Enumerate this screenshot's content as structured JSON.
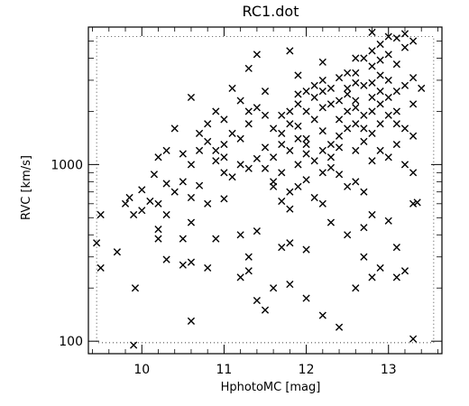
{
  "chart_data": {
    "type": "scatter",
    "title": "RC1.dot",
    "xlabel": "HphotoMC     [mag]",
    "ylabel": "RVC     [km/s]",
    "xlim": [
      9.35,
      13.65
    ],
    "ylim": [
      85,
      6000
    ],
    "yscale": "log",
    "x_ticks": [
      10,
      11,
      12,
      13
    ],
    "x_tick_labels": [
      "10",
      "11",
      "12",
      "13"
    ],
    "y_ticks": [
      100,
      1000
    ],
    "y_tick_labels": [
      "100",
      "1000"
    ],
    "marker": "x",
    "marker_color": "#000000",
    "grid": false,
    "points": [
      [
        9.9,
        95
      ],
      [
        10.6,
        130
      ],
      [
        11.5,
        150
      ],
      [
        12.4,
        120
      ],
      [
        12.2,
        140
      ],
      [
        13.3,
        103
      ],
      [
        9.92,
        200
      ],
      [
        11.6,
        200
      ],
      [
        11.4,
        170
      ],
      [
        12.0,
        175
      ],
      [
        13.1,
        230
      ],
      [
        9.5,
        260
      ],
      [
        9.45,
        360
      ],
      [
        9.7,
        320
      ],
      [
        10.5,
        270
      ],
      [
        10.3,
        290
      ],
      [
        10.6,
        280
      ],
      [
        10.2,
        380
      ],
      [
        10.8,
        260
      ],
      [
        11.2,
        230
      ],
      [
        11.3,
        250
      ],
      [
        11.8,
        210
      ],
      [
        12.6,
        200
      ],
      [
        12.8,
        230
      ],
      [
        12.9,
        260
      ],
      [
        12.7,
        300
      ],
      [
        13.2,
        250
      ],
      [
        13.1,
        340
      ],
      [
        9.5,
        520
      ],
      [
        9.8,
        600
      ],
      [
        9.9,
        520
      ],
      [
        10.0,
        550
      ],
      [
        10.2,
        430
      ],
      [
        10.3,
        520
      ],
      [
        10.6,
        470
      ],
      [
        10.5,
        380
      ],
      [
        10.9,
        380
      ],
      [
        11.2,
        400
      ],
      [
        11.4,
        420
      ],
      [
        11.3,
        300
      ],
      [
        11.7,
        340
      ],
      [
        11.8,
        360
      ],
      [
        12.0,
        330
      ],
      [
        12.3,
        470
      ],
      [
        12.5,
        400
      ],
      [
        12.8,
        520
      ],
      [
        13.0,
        480
      ],
      [
        13.3,
        600
      ],
      [
        13.35,
        610
      ],
      [
        12.7,
        440
      ],
      [
        9.85,
        650
      ],
      [
        10.0,
        720
      ],
      [
        10.1,
        620
      ],
      [
        10.15,
        880
      ],
      [
        10.2,
        600
      ],
      [
        10.3,
        780
      ],
      [
        10.4,
        700
      ],
      [
        10.5,
        800
      ],
      [
        10.6,
        650
      ],
      [
        10.7,
        760
      ],
      [
        10.8,
        600
      ],
      [
        11.0,
        640
      ],
      [
        10.2,
        1100
      ],
      [
        10.3,
        1200
      ],
      [
        10.5,
        1150
      ],
      [
        10.6,
        1000
      ],
      [
        10.7,
        1200
      ],
      [
        10.9,
        1050
      ],
      [
        11.0,
        900
      ],
      [
        11.1,
        850
      ],
      [
        11.0,
        1100
      ],
      [
        11.2,
        1000
      ],
      [
        11.3,
        950
      ],
      [
        11.4,
        1080
      ],
      [
        10.4,
        1600
      ],
      [
        10.7,
        1500
      ],
      [
        10.8,
        1350
      ],
      [
        10.6,
        2400
      ],
      [
        10.9,
        2000
      ],
      [
        11.0,
        1800
      ],
      [
        11.1,
        1500
      ],
      [
        11.2,
        1400
      ],
      [
        11.3,
        1700
      ],
      [
        11.4,
        2100
      ],
      [
        11.5,
        1900
      ],
      [
        11.6,
        1600
      ],
      [
        11.5,
        1250
      ],
      [
        11.6,
        1100
      ],
      [
        11.7,
        1300
      ],
      [
        11.8,
        1200
      ],
      [
        11.5,
        950
      ],
      [
        11.6,
        800
      ],
      [
        11.7,
        900
      ],
      [
        11.8,
        700
      ],
      [
        11.9,
        750
      ],
      [
        12.0,
        820
      ],
      [
        12.1,
        650
      ],
      [
        12.2,
        600
      ],
      [
        11.6,
        750
      ],
      [
        11.7,
        620
      ],
      [
        11.8,
        560
      ],
      [
        11.9,
        1000
      ],
      [
        12.0,
        1150
      ],
      [
        12.1,
        1050
      ],
      [
        12.2,
        900
      ],
      [
        12.3,
        960
      ],
      [
        12.4,
        880
      ],
      [
        12.5,
        750
      ],
      [
        12.6,
        800
      ],
      [
        12.7,
        700
      ],
      [
        11.7,
        1500
      ],
      [
        11.8,
        1700
      ],
      [
        11.9,
        1650
      ],
      [
        12.0,
        1400
      ],
      [
        12.1,
        1800
      ],
      [
        12.2,
        1550
      ],
      [
        12.3,
        1300
      ],
      [
        12.4,
        1450
      ],
      [
        12.5,
        1600
      ],
      [
        12.6,
        1200
      ],
      [
        12.7,
        1350
      ],
      [
        12.8,
        1500
      ],
      [
        11.8,
        2000
      ],
      [
        11.9,
        2200
      ],
      [
        12.0,
        2600
      ],
      [
        12.1,
        2400
      ],
      [
        12.2,
        2100
      ],
      [
        12.3,
        2700
      ],
      [
        12.4,
        2300
      ],
      [
        12.5,
        2500
      ],
      [
        12.6,
        2100
      ],
      [
        12.7,
        2800
      ],
      [
        12.8,
        2400
      ],
      [
        12.9,
        2200
      ],
      [
        11.9,
        3200
      ],
      [
        12.2,
        3000
      ],
      [
        12.4,
        3100
      ],
      [
        12.6,
        3300
      ],
      [
        12.8,
        3600
      ],
      [
        12.9,
        3200
      ],
      [
        12.7,
        4000
      ],
      [
        12.8,
        4400
      ],
      [
        12.9,
        4800
      ],
      [
        13.0,
        4200
      ],
      [
        13.1,
        5200
      ],
      [
        13.2,
        5500
      ],
      [
        12.8,
        5600
      ],
      [
        13.0,
        5300
      ],
      [
        13.3,
        5000
      ],
      [
        13.2,
        4600
      ],
      [
        12.9,
        3900
      ],
      [
        13.1,
        3700
      ],
      [
        11.3,
        3500
      ],
      [
        11.4,
        4200
      ],
      [
        11.8,
        4400
      ],
      [
        12.2,
        3800
      ],
      [
        12.5,
        3300
      ],
      [
        12.6,
        4000
      ],
      [
        13.0,
        3000
      ],
      [
        13.1,
        2600
      ],
      [
        13.2,
        2800
      ],
      [
        13.3,
        3100
      ],
      [
        13.4,
        2700
      ],
      [
        13.3,
        2200
      ],
      [
        13.0,
        1900
      ],
      [
        13.1,
        1700
      ],
      [
        13.2,
        1600
      ],
      [
        13.3,
        1450
      ],
      [
        13.1,
        1300
      ],
      [
        13.0,
        1100
      ],
      [
        12.8,
        1050
      ],
      [
        12.9,
        1200
      ],
      [
        13.2,
        1000
      ],
      [
        13.3,
        900
      ],
      [
        12.6,
        1700
      ],
      [
        12.7,
        1900
      ],
      [
        12.6,
        2900
      ],
      [
        12.5,
        2000
      ],
      [
        12.3,
        2200
      ],
      [
        12.1,
        2800
      ],
      [
        12.0,
        2000
      ],
      [
        11.9,
        1400
      ],
      [
        11.2,
        2300
      ],
      [
        11.3,
        2000
      ],
      [
        11.0,
        1300
      ],
      [
        10.9,
        1200
      ],
      [
        12.4,
        1800
      ],
      [
        12.7,
        1600
      ],
      [
        12.3,
        1100
      ],
      [
        12.4,
        1250
      ],
      [
        12.2,
        1200
      ],
      [
        12.0,
        1300
      ],
      [
        12.9,
        2600
      ],
      [
        12.8,
        2900
      ],
      [
        13.0,
        2400
      ],
      [
        12.9,
        1700
      ],
      [
        12.5,
        2700
      ],
      [
        12.6,
        2300
      ],
      [
        12.2,
        2600
      ],
      [
        11.7,
        1900
      ],
      [
        10.8,
        1700
      ],
      [
        11.1,
        2700
      ],
      [
        11.5,
        2600
      ],
      [
        11.9,
        2500
      ],
      [
        12.8,
        2000
      ],
      [
        13.1,
        2000
      ]
    ]
  }
}
